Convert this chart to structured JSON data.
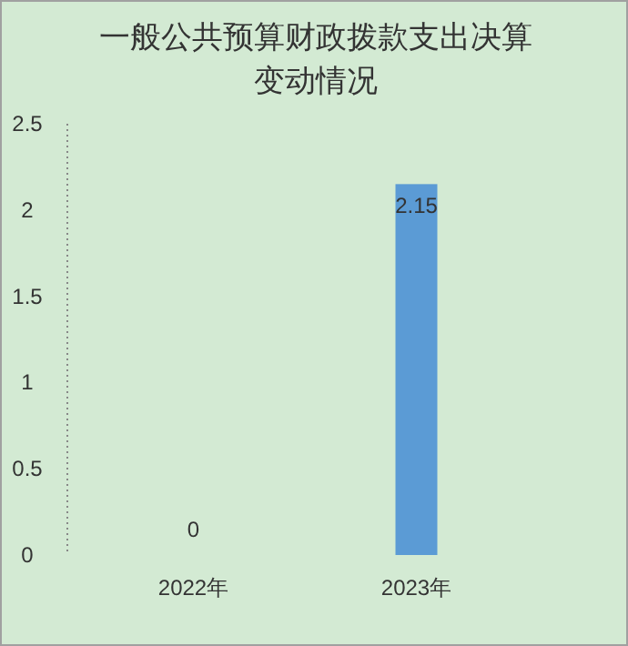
{
  "chart_data": {
    "type": "bar",
    "title": "一般公共预算财政拨款支出决算变动情况",
    "categories": [
      "2022年",
      "2023年"
    ],
    "values": [
      0,
      2.15
    ],
    "color": "#5b9bd5",
    "ylim": [
      0,
      2.5
    ],
    "yticks": [
      0,
      0.5,
      1,
      1.5,
      2,
      2.5
    ],
    "data_labels": true
  }
}
